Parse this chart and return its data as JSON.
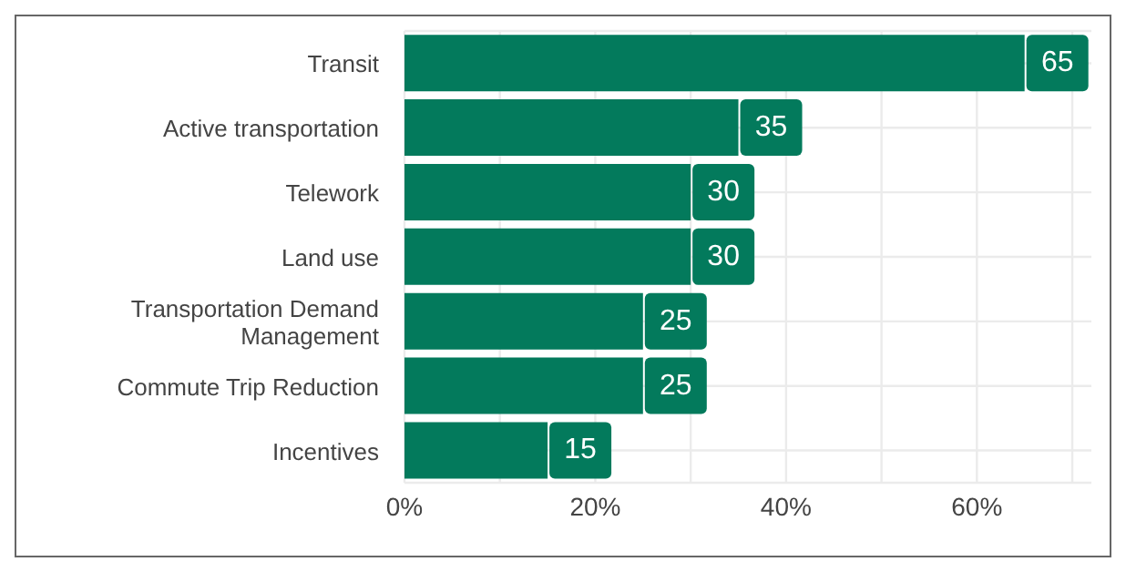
{
  "chart_data": {
    "type": "bar",
    "orientation": "horizontal",
    "categories": [
      "Transit",
      "Active transportation",
      "Telework",
      "Land use",
      "Transportation Demand Management",
      "Commute Trip Reduction",
      "Incentives"
    ],
    "values": [
      65,
      35,
      30,
      30,
      25,
      25,
      15
    ],
    "data_labels": true,
    "color": "#037a5c",
    "xlim": [
      0,
      72
    ],
    "xticks": [
      {
        "value": 0,
        "label": "0%"
      },
      {
        "value": 10,
        "label": null
      },
      {
        "value": 20,
        "label": "20%"
      },
      {
        "value": 30,
        "label": null
      },
      {
        "value": 40,
        "label": "40%"
      },
      {
        "value": 50,
        "label": null
      },
      {
        "value": 60,
        "label": "60%"
      },
      {
        "value": 70,
        "label": null
      }
    ],
    "grid": true
  }
}
